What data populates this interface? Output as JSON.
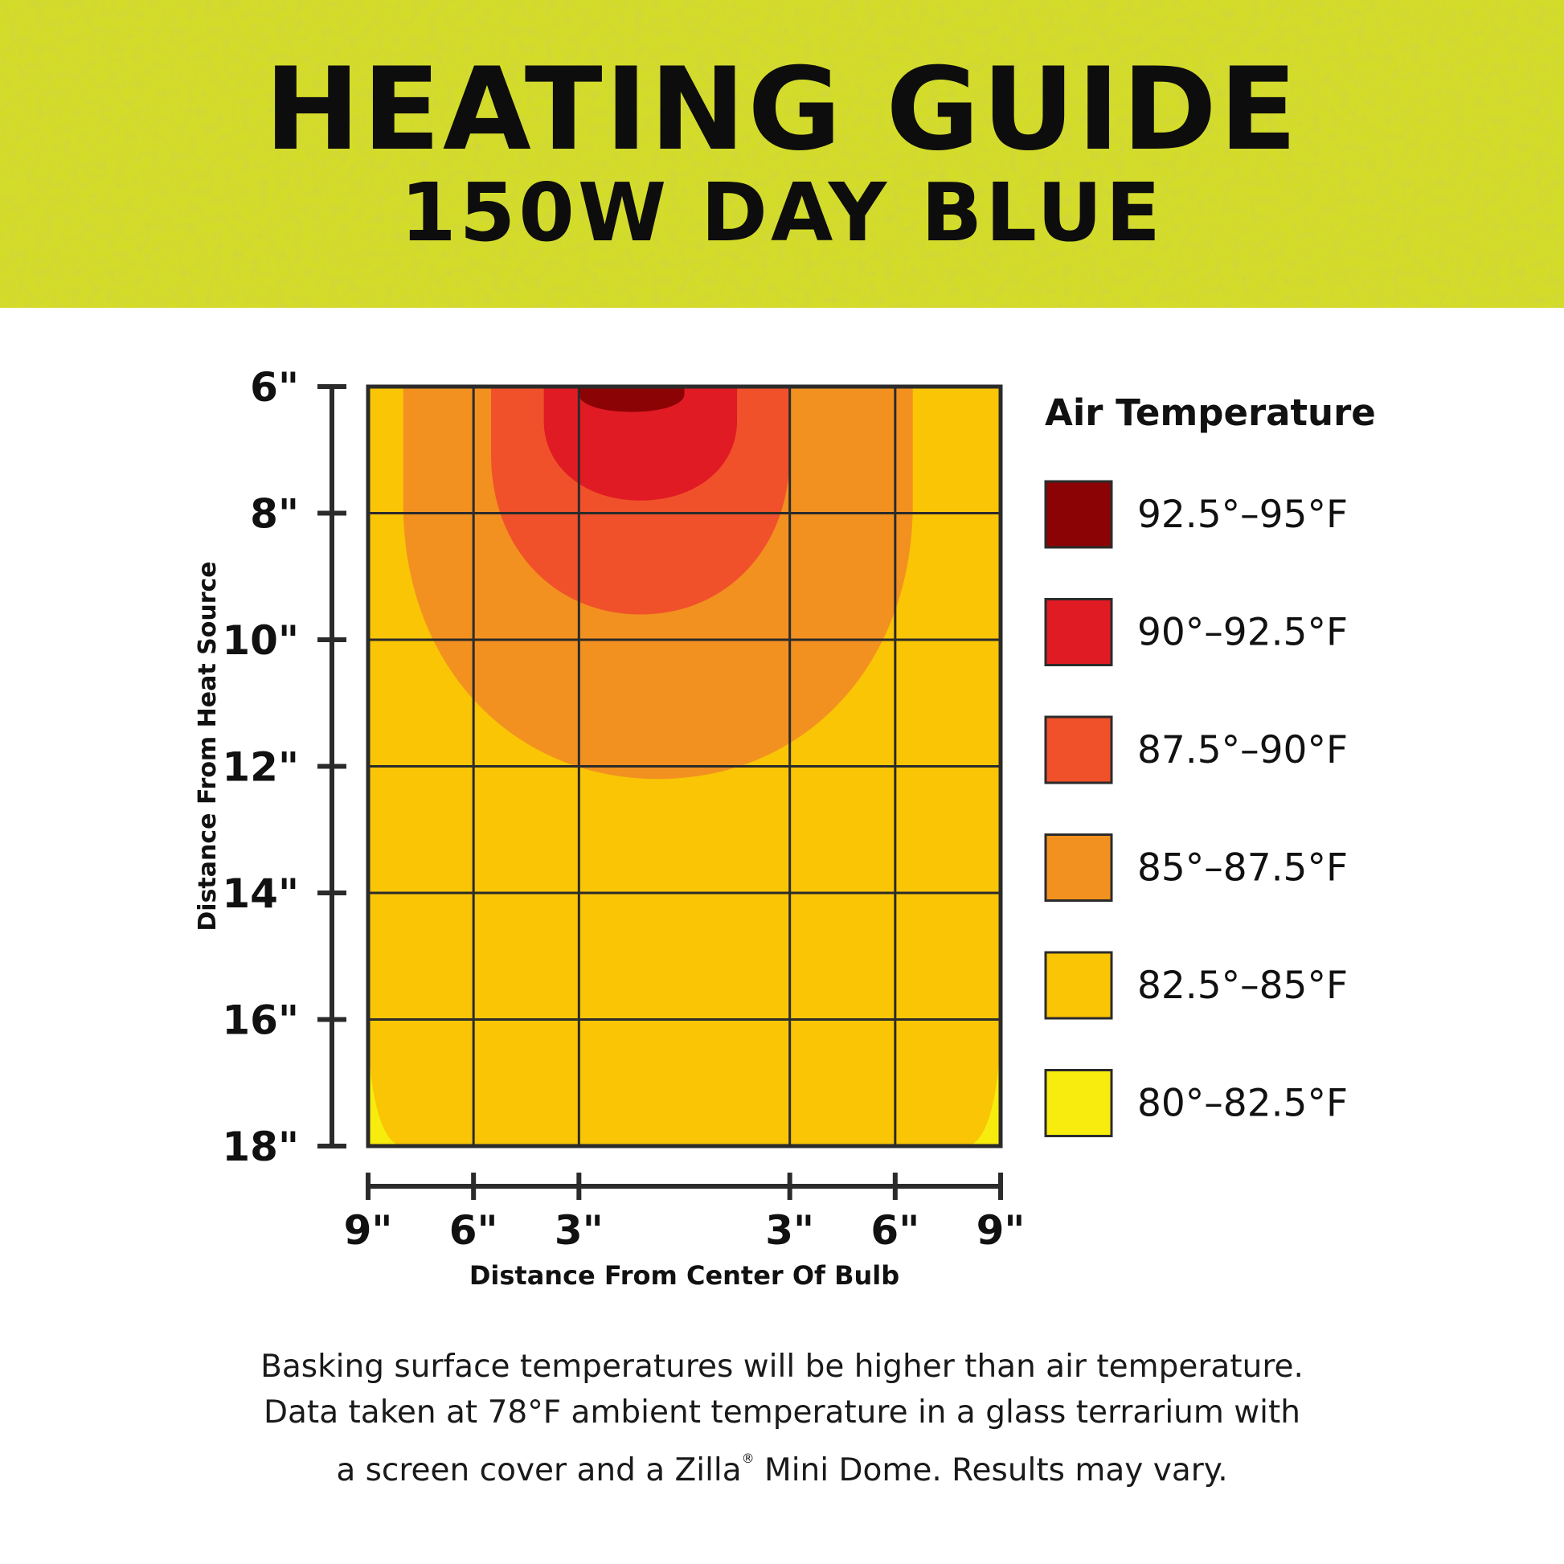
{
  "header": {
    "title": "HEATING GUIDE",
    "subtitle": "150W DAY BLUE"
  },
  "colors": {
    "banner": "#d4dc2a",
    "banner_dark": "#bcc41e",
    "banner_light": "#e2e856",
    "grid": "#2b2b2b"
  },
  "chart_data": {
    "type": "heatmap",
    "xlabel": "Distance From Center Of Bulb",
    "ylabel": "Distance From Heat Source",
    "x_ticks": [
      "9\"",
      "6\"",
      "3\"",
      "3\"",
      "6\"",
      "9\""
    ],
    "x_values": [
      -9,
      -6,
      -3,
      3,
      6,
      9
    ],
    "y_ticks": [
      "6\"",
      "8\"",
      "10\"",
      "12\"",
      "14\"",
      "16\"",
      "18\""
    ],
    "y_values": [
      6,
      8,
      10,
      12,
      14,
      16,
      18
    ],
    "xlim": [
      -9,
      9
    ],
    "ylim": [
      6,
      18
    ],
    "grid": true,
    "legend": {
      "title": "Air Temperature",
      "position": "right",
      "entries": [
        {
          "label": "92.5°–95°F",
          "range": [
            92.5,
            95
          ],
          "color": "#8b0304"
        },
        {
          "label": "90°–92.5°F",
          "range": [
            90,
            92.5
          ],
          "color": "#e01b24"
        },
        {
          "label": "87.5°–90°F",
          "range": [
            87.5,
            90
          ],
          "color": "#f0512a"
        },
        {
          "label": "85°–87.5°F",
          "range": [
            85,
            87.5
          ],
          "color": "#f29120"
        },
        {
          "label": "82.5°–85°F",
          "range": [
            82.5,
            85
          ],
          "color": "#f9c505"
        },
        {
          "label": "80°–82.5°F",
          "range": [
            80,
            82.5
          ],
          "color": "#f7ec0d"
        }
      ]
    },
    "zones": [
      {
        "range": [
          92.5,
          95
        ],
        "x_extent": [
          -3,
          0
        ],
        "y_extent": [
          6,
          6.4
        ]
      },
      {
        "range": [
          90,
          92.5
        ],
        "x_extent": [
          -4,
          1.5
        ],
        "y_extent": [
          6,
          7.8
        ]
      },
      {
        "range": [
          87.5,
          90
        ],
        "x_extent": [
          -5.5,
          3
        ],
        "y_extent": [
          6,
          9.6
        ]
      },
      {
        "range": [
          85,
          87.5
        ],
        "x_extent": [
          -8,
          6.5
        ],
        "y_extent": [
          6,
          12.2
        ]
      },
      {
        "range": [
          82.5,
          85
        ],
        "x_extent": [
          -9,
          9
        ],
        "y_extent": [
          6,
          18
        ]
      },
      {
        "range": [
          80,
          82.5
        ],
        "x_extent": [
          -9,
          -8
        ],
        "y_extent": [
          16,
          18
        ]
      },
      {
        "range": [
          80,
          82.5
        ],
        "x_extent": [
          8,
          9
        ],
        "y_extent": [
          16,
          18
        ]
      }
    ]
  },
  "footnote": {
    "line1": "Basking surface temperatures will be higher than air temperature.",
    "line2": "Data taken at 78°F ambient temperature in a glass terrarium with",
    "line3_a": "a screen cover and a Zilla",
    "line3_reg": "®",
    "line3_b": " Mini Dome. Results may vary."
  }
}
